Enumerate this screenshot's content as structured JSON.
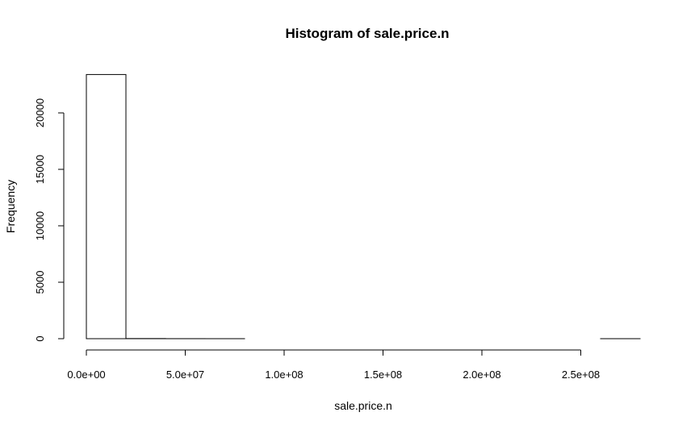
{
  "chart_data": {
    "type": "bar",
    "title": "Histogram of sale.price.n",
    "xlabel": "sale.price.n",
    "ylabel": "Frequency",
    "xlim": [
      0,
      280000000
    ],
    "ylim": [
      0,
      23500
    ],
    "x_ticks": [
      0,
      50000000,
      100000000,
      150000000,
      200000000,
      250000000
    ],
    "x_tick_labels": [
      "0.0e+00",
      "5.0e+07",
      "1.0e+08",
      "1.5e+08",
      "2.0e+08",
      "2.5e+08"
    ],
    "y_ticks": [
      0,
      5000,
      10000,
      15000,
      20000
    ],
    "y_tick_labels": [
      "0",
      "5000",
      "10000",
      "15000",
      "20000"
    ],
    "bin_width": 20000000,
    "bins": [
      {
        "start": 0,
        "end": 20000000,
        "count": 23400
      },
      {
        "start": 20000000,
        "end": 40000000,
        "count": 12
      },
      {
        "start": 40000000,
        "end": 60000000,
        "count": 3
      },
      {
        "start": 60000000,
        "end": 80000000,
        "count": 1
      },
      {
        "start": 80000000,
        "end": 100000000,
        "count": 0
      },
      {
        "start": 100000000,
        "end": 120000000,
        "count": 0
      },
      {
        "start": 120000000,
        "end": 140000000,
        "count": 0
      },
      {
        "start": 140000000,
        "end": 160000000,
        "count": 0
      },
      {
        "start": 160000000,
        "end": 180000000,
        "count": 0
      },
      {
        "start": 180000000,
        "end": 200000000,
        "count": 0
      },
      {
        "start": 200000000,
        "end": 220000000,
        "count": 0
      },
      {
        "start": 220000000,
        "end": 240000000,
        "count": 0
      },
      {
        "start": 240000000,
        "end": 260000000,
        "count": 0
      },
      {
        "start": 260000000,
        "end": 280000000,
        "count": 1
      }
    ],
    "grid": false,
    "legend": "none"
  }
}
